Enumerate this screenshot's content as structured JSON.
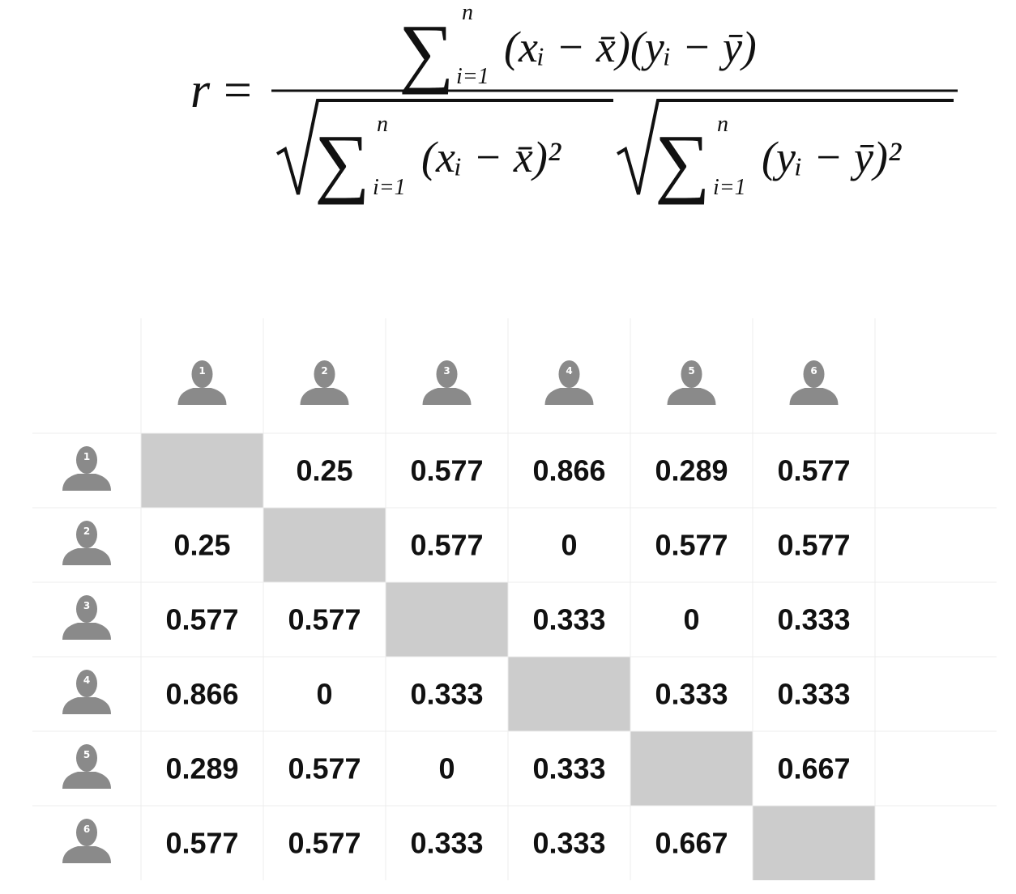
{
  "formula": {
    "lhs": "r",
    "equals": "=",
    "sum": "∑",
    "upper": "n",
    "lower": "i=1",
    "numerator_term": "(xᵢ − x̄)(yᵢ − ȳ)",
    "denominator_terms": [
      "(xᵢ − x̄)²",
      "(yᵢ − ȳ)²"
    ]
  },
  "table": {
    "column_labels": [
      "1",
      "2",
      "3",
      "4",
      "5",
      "6"
    ],
    "row_labels": [
      "1",
      "2",
      "3",
      "4",
      "5",
      "6"
    ],
    "rows": [
      [
        null,
        0.25,
        0.577,
        0.866,
        0.289,
        0.577
      ],
      [
        0.25,
        null,
        0.577,
        0,
        0.577,
        0.577
      ],
      [
        0.577,
        0.577,
        null,
        0.333,
        0,
        0.333
      ],
      [
        0.866,
        0,
        0.333,
        null,
        0.333,
        0.333
      ],
      [
        0.289,
        0.577,
        0,
        0.333,
        null,
        0.667
      ],
      [
        0.577,
        0.577,
        0.333,
        0.333,
        0.667,
        null
      ]
    ]
  }
}
